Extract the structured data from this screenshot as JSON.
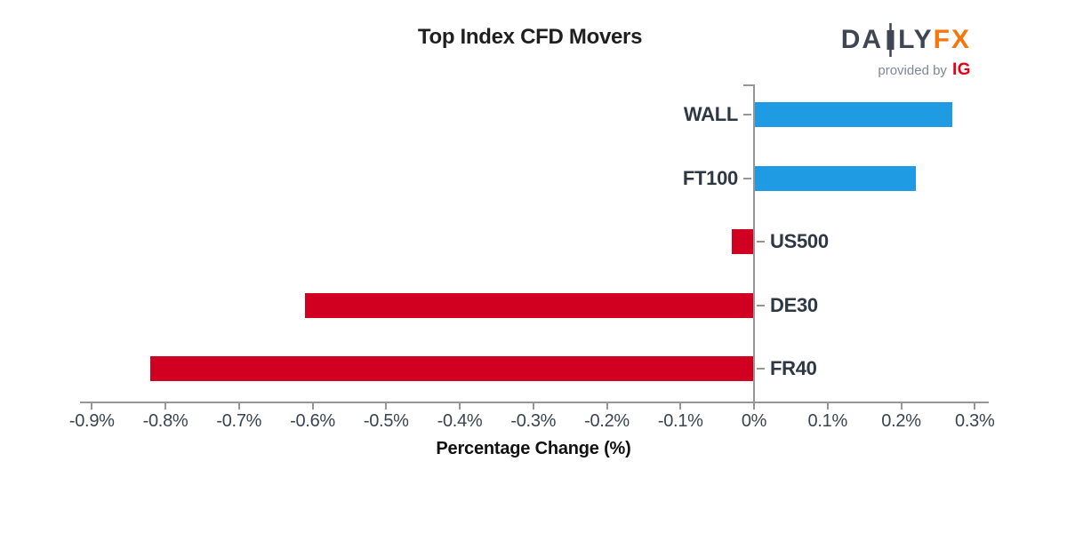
{
  "header": {
    "title": "Top Index CFD Movers",
    "brand": {
      "daily_prefix": "DA",
      "daily_suffix": "LY",
      "fx": "FX",
      "provided_by": "provided by",
      "ig": "IG"
    }
  },
  "chart_data": {
    "type": "bar",
    "orientation": "horizontal",
    "title": "Top Index CFD Movers",
    "categories": [
      "WALL",
      "FT100",
      "US500",
      "DE30",
      "FR40"
    ],
    "values": [
      0.27,
      0.22,
      -0.03,
      -0.61,
      -0.82
    ],
    "xlabel": "Percentage Change (%)",
    "x_ticks": [
      -0.9,
      -0.8,
      -0.7,
      -0.6,
      -0.5,
      -0.4,
      -0.3,
      -0.2,
      -0.1,
      0,
      0.1,
      0.2,
      0.3
    ],
    "x_tick_labels": [
      "-0.9%",
      "-0.8%",
      "-0.7%",
      "-0.6%",
      "-0.5%",
      "-0.4%",
      "-0.3%",
      "-0.2%",
      "-0.1%",
      "0%",
      "0.1%",
      "0.2%",
      "0.3%"
    ],
    "xlim": [
      -0.92,
      0.32
    ],
    "grid": false,
    "legend": "none",
    "colors": {
      "positive_bar": "#1f9be4",
      "negative_bar": "#d10021",
      "axis": "#969696",
      "category_label": "#2e3844",
      "tick_label": "#3a4450",
      "title": "#1f1f1f",
      "brand_slate": "#3f4552",
      "brand_orange": "#f7760b",
      "brand_ig_red": "#e60017",
      "brand_gray": "#7e8894"
    }
  }
}
